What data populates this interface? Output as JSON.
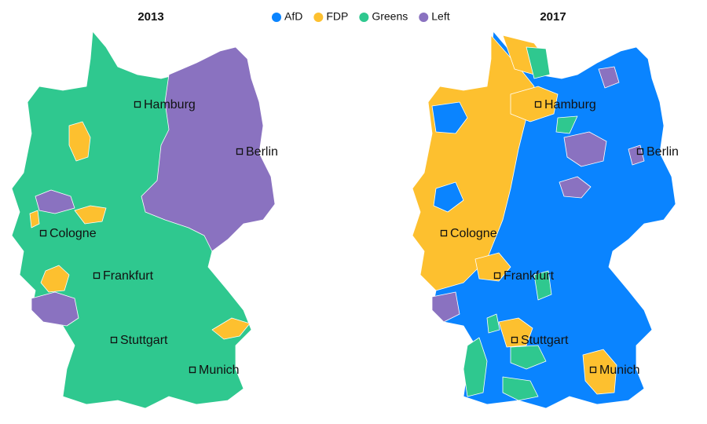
{
  "legend": [
    {
      "name": "AfD",
      "color": "#0a84ff"
    },
    {
      "name": "FDP",
      "color": "#fdc02f"
    },
    {
      "name": "Greens",
      "color": "#2fc88f"
    },
    {
      "name": "Left",
      "color": "#8a72c0"
    }
  ],
  "maps": [
    {
      "title": "2013",
      "cities": [
        "Hamburg",
        "Berlin",
        "Cologne",
        "Frankfurt",
        "Stuttgart",
        "Munich"
      ]
    },
    {
      "title": "2017",
      "cities": [
        "Hamburg",
        "Berlin",
        "Cologne",
        "Frankfurt",
        "Stuttgart",
        "Munich"
      ]
    }
  ]
}
